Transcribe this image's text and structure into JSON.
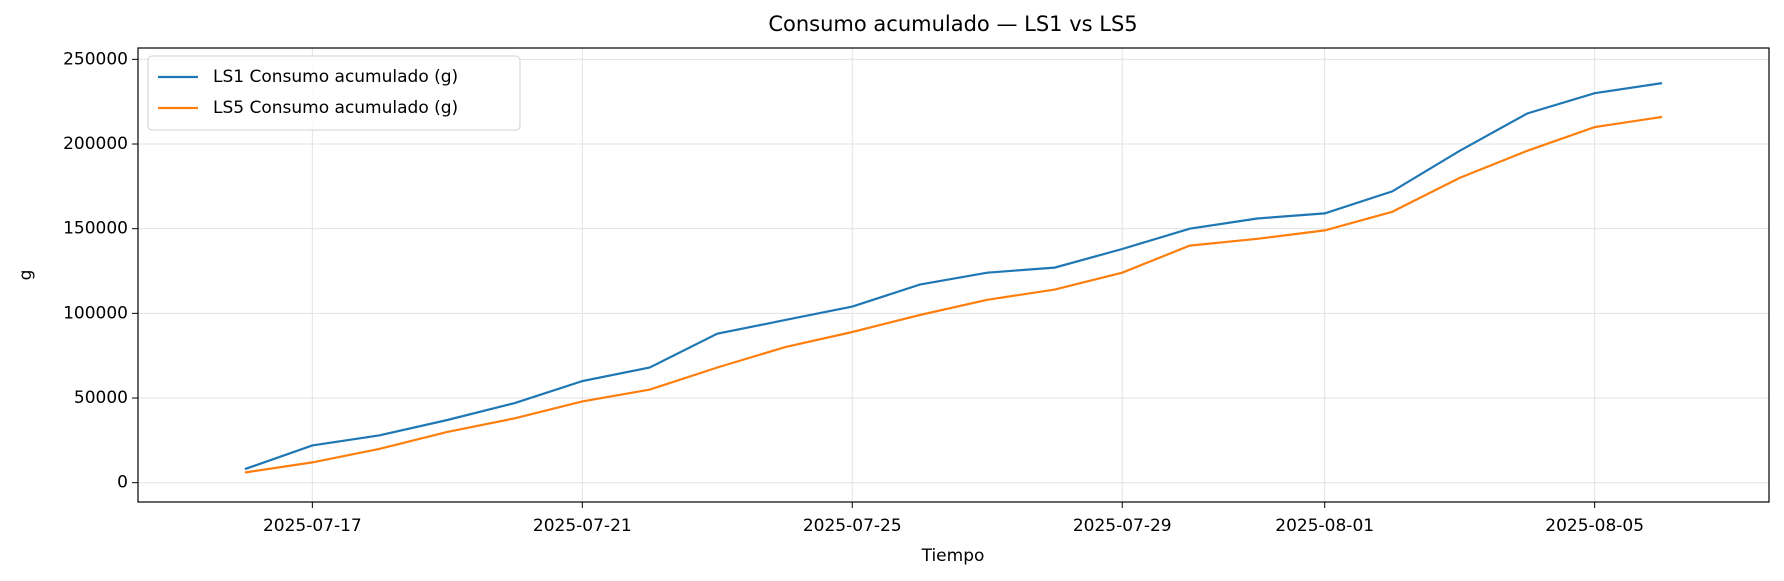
{
  "chart_data": {
    "type": "line",
    "title": "Consumo acumulado — LS1 vs LS5",
    "xlabel": "Tiempo",
    "ylabel": "g",
    "x": [
      "2025-07-16",
      "2025-07-17",
      "2025-07-18",
      "2025-07-19",
      "2025-07-20",
      "2025-07-21",
      "2025-07-22",
      "2025-07-23",
      "2025-07-24",
      "2025-07-25",
      "2025-07-26",
      "2025-07-27",
      "2025-07-28",
      "2025-07-29",
      "2025-07-30",
      "2025-07-31",
      "2025-08-01",
      "2025-08-02",
      "2025-08-03",
      "2025-08-04",
      "2025-08-05",
      "2025-08-06"
    ],
    "series": [
      {
        "name": "LS1 Consumo acumulado (g)",
        "color": "#1f77b4",
        "values": [
          8000,
          22000,
          28000,
          37000,
          47000,
          60000,
          68000,
          88000,
          96000,
          104000,
          117000,
          124000,
          127000,
          138000,
          150000,
          156000,
          159000,
          172000,
          196000,
          218000,
          230000,
          236000
        ]
      },
      {
        "name": "LS5 Consumo acumulado (g)",
        "color": "#ff7f0e",
        "values": [
          6000,
          12000,
          20000,
          30000,
          38000,
          48000,
          55000,
          68000,
          80000,
          89000,
          99000,
          108000,
          114000,
          124000,
          140000,
          144000,
          149000,
          160000,
          180000,
          196000,
          210000,
          216000
        ]
      }
    ],
    "xlim": [
      "2025-07-14T10:00",
      "2025-08-07T14:00"
    ],
    "xticks": [
      "2025-07-17",
      "2025-07-21",
      "2025-07-25",
      "2025-07-29",
      "2025-08-01",
      "2025-08-05"
    ],
    "ylim": [
      -11400,
      256700
    ],
    "yticks": [
      0,
      50000,
      100000,
      150000,
      200000,
      250000
    ],
    "grid": true,
    "legend": "upper-left"
  }
}
